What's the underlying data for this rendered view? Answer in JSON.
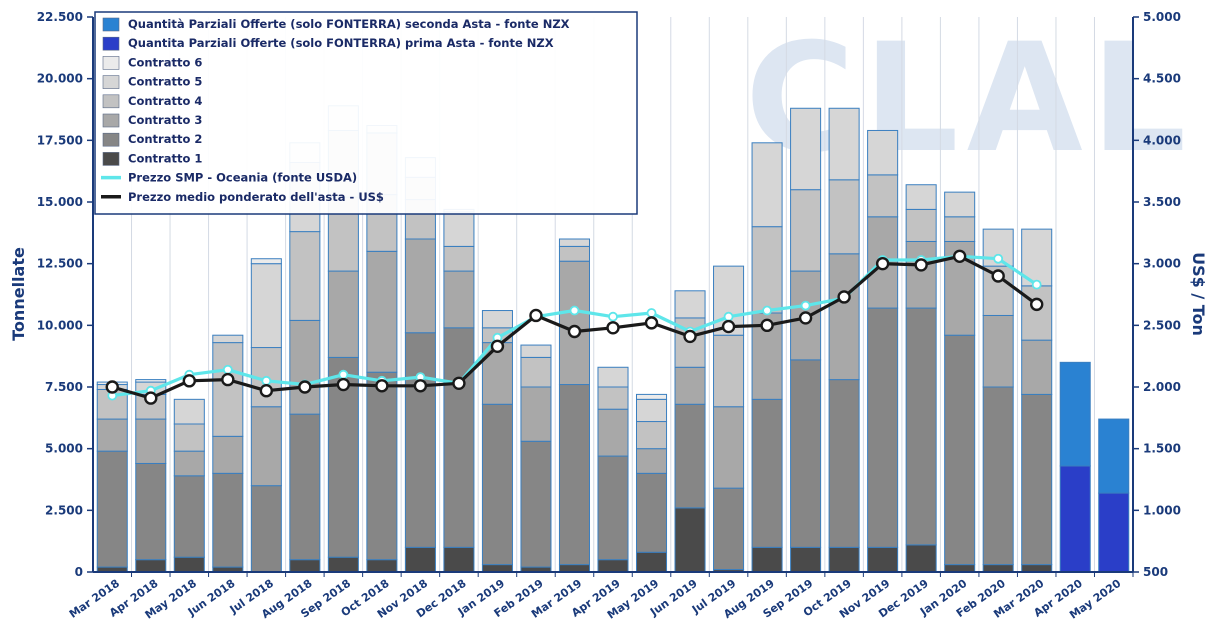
{
  "chart_data": {
    "type": "bar",
    "watermark": "CLAL",
    "categories": [
      "Mar 2018",
      "Apr 2018",
      "May 2018",
      "Jun 2018",
      "Jul 2018",
      "Aug 2018",
      "Sep 2018",
      "Oct 2018",
      "Nov 2018",
      "Dec 2018",
      "Jan 2019",
      "Feb 2019",
      "Mar 2019",
      "Apr 2019",
      "May 2019",
      "Jun 2019",
      "Jul 2019",
      "Aug 2019",
      "Sep 2019",
      "Oct 2019",
      "Nov 2019",
      "Dec 2019",
      "Jan 2020",
      "Feb 2020",
      "Mar 2020",
      "Apr 2020",
      "May 2020"
    ],
    "ylabel_left": "Tonnellate",
    "ylabel_right": "US$ / Ton",
    "ylim_left": [
      0,
      22500
    ],
    "ylim_right": [
      500,
      5000
    ],
    "yticks_left": [
      "0",
      "2.500",
      "5.000",
      "7.500",
      "10.000",
      "12.500",
      "15.000",
      "17.500",
      "20.000",
      "22.500"
    ],
    "yticks_right": [
      "500",
      "1.000",
      "1.500",
      "2.000",
      "2.500",
      "3.000",
      "3.500",
      "4.000",
      "4.500",
      "5.000"
    ],
    "grid": "vertical",
    "legend_position": "top-left",
    "stack_series": [
      {
        "name": "Contratto 1",
        "color": "#4a4a4a",
        "values": [
          200,
          500,
          600,
          200,
          0,
          500,
          600,
          500,
          1000,
          1000,
          300,
          200,
          300,
          500,
          800,
          2600,
          100,
          1000,
          1000,
          1000,
          1000,
          1100,
          300,
          300,
          300,
          0,
          0
        ]
      },
      {
        "name": "Contratto 2",
        "color": "#868686",
        "values": [
          4700,
          3900,
          3300,
          3800,
          3500,
          5900,
          8100,
          7600,
          8700,
          8900,
          6500,
          5100,
          7300,
          4200,
          3200,
          4200,
          3300,
          6000,
          7600,
          6800,
          9700,
          9600,
          9300,
          7200,
          6900,
          0,
          0
        ]
      },
      {
        "name": "Contratto 3",
        "color": "#a8a8a8",
        "values": [
          1300,
          1800,
          1000,
          1500,
          3200,
          3800,
          3500,
          4900,
          3800,
          2300,
          2500,
          2200,
          5000,
          1900,
          1000,
          1500,
          3300,
          3500,
          3600,
          5100,
          3700,
          2700,
          3800,
          2900,
          2200,
          0,
          0
        ]
      },
      {
        "name": "Contratto 4",
        "color": "#c2c2c2",
        "values": [
          1200,
          1000,
          1100,
          3800,
          2400,
          3600,
          3000,
          2300,
          1600,
          1000,
          600,
          1200,
          600,
          900,
          1100,
          2000,
          2900,
          3500,
          3300,
          3000,
          1700,
          1300,
          1000,
          2000,
          2200,
          0,
          0
        ]
      },
      {
        "name": "Contratto 5",
        "color": "#d6d6d6",
        "values": [
          200,
          500,
          1000,
          300,
          3400,
          2800,
          2700,
          2500,
          900,
          1400,
          700,
          500,
          300,
          800,
          900,
          1100,
          2800,
          3400,
          3300,
          2900,
          1800,
          1000,
          1000,
          1500,
          2300,
          0,
          0
        ]
      },
      {
        "name": "Contratto 6",
        "color": "#ebebeb",
        "values": [
          100,
          100,
          0,
          0,
          200,
          800,
          1000,
          300,
          800,
          100,
          0,
          0,
          0,
          0,
          200,
          0,
          0,
          0,
          0,
          0,
          0,
          0,
          0,
          0,
          0,
          0,
          0
        ]
      },
      {
        "name": "Quantita Parziali Offerte (solo FONTERRA) prima Asta - fonte NZX",
        "color": "#2a3ec8",
        "values": [
          0,
          0,
          0,
          0,
          0,
          0,
          0,
          0,
          0,
          0,
          0,
          0,
          0,
          0,
          0,
          0,
          0,
          0,
          0,
          0,
          0,
          0,
          0,
          0,
          0,
          4300,
          3200
        ]
      },
      {
        "name": "Quantità Parziali Offerte (solo FONTERRA) seconda Asta - fonte NZX",
        "color": "#2a82d2",
        "values": [
          0,
          0,
          0,
          0,
          0,
          0,
          0,
          0,
          0,
          0,
          0,
          0,
          0,
          0,
          0,
          0,
          0,
          0,
          0,
          0,
          0,
          0,
          0,
          0,
          0,
          4200,
          3000
        ]
      }
    ],
    "line_series": [
      {
        "name": "Prezzo SMP - Oceania (fonte USDA)",
        "color": "#5ee6ea",
        "values": [
          1930,
          1970,
          2100,
          2140,
          2050,
          2020,
          2100,
          2050,
          2080,
          2030,
          2400,
          2570,
          2620,
          2570,
          2600,
          2450,
          2570,
          2620,
          2660,
          2720,
          3030,
          3030,
          3060,
          3040,
          2830,
          null,
          null
        ]
      },
      {
        "name": "Prezzo medio ponderato dell'asta - US$",
        "color": "#1a1a1a",
        "values": [
          2000,
          1910,
          2050,
          2060,
          1970,
          2000,
          2020,
          2010,
          2010,
          2030,
          2330,
          2580,
          2450,
          2480,
          2520,
          2410,
          2490,
          2500,
          2560,
          2730,
          3000,
          2990,
          3060,
          2900,
          2670,
          null,
          null
        ]
      }
    ],
    "legend": [
      {
        "name": "Quantità Parziali Offerte (solo FONTERRA) seconda Asta - fonte NZX",
        "color": "#2a82d2",
        "kind": "box"
      },
      {
        "name": "Quantita Parziali Offerte (solo FONTERRA) prima Asta - fonte NZX",
        "color": "#2a3ec8",
        "kind": "box"
      },
      {
        "name": "Contratto 6",
        "color": "#ebebeb",
        "kind": "box"
      },
      {
        "name": "Contratto 5",
        "color": "#d6d6d6",
        "kind": "box"
      },
      {
        "name": "Contratto 4",
        "color": "#c2c2c2",
        "kind": "box"
      },
      {
        "name": "Contratto 3",
        "color": "#a8a8a8",
        "kind": "box"
      },
      {
        "name": "Contratto 2",
        "color": "#868686",
        "kind": "box"
      },
      {
        "name": "Contratto 1",
        "color": "#4a4a4a",
        "kind": "box"
      },
      {
        "name": "Prezzo SMP - Oceania (fonte USDA)",
        "color": "#5ee6ea",
        "kind": "line"
      },
      {
        "name": "Prezzo medio ponderato dell'asta - US$",
        "color": "#1a1a1a",
        "kind": "line"
      }
    ]
  }
}
